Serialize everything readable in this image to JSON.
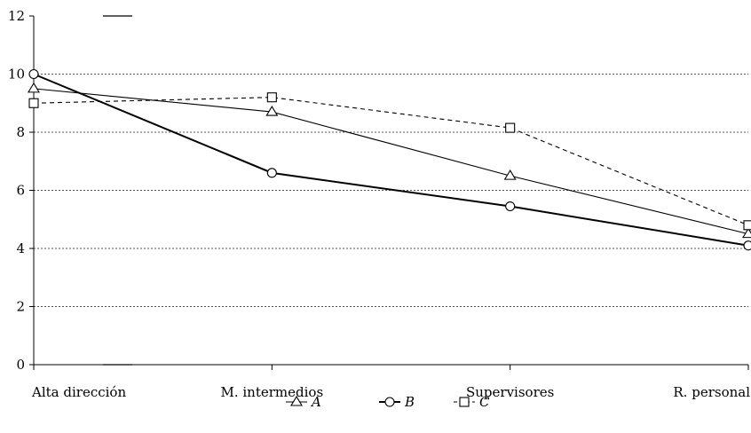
{
  "chart_data": {
    "type": "line",
    "title": "",
    "xlabel": "",
    "ylabel": "",
    "categories": [
      "Alta dirección",
      "M. intermedios",
      "Supervisores",
      "R. personal"
    ],
    "ylim": [
      0,
      12
    ],
    "yticks": [
      0,
      2,
      4,
      6,
      8,
      10,
      12
    ],
    "grid": "horizontal-dotted",
    "legend_position": "bottom",
    "series": [
      {
        "name": "A",
        "values": [
          9.5,
          8.7,
          6.5,
          4.5
        ],
        "marker": "triangle",
        "line": "solid-thin"
      },
      {
        "name": "B",
        "values": [
          10.0,
          6.6,
          5.45,
          4.1
        ],
        "marker": "circle",
        "line": "solid-thick"
      },
      {
        "name": "C",
        "values": [
          9.0,
          9.2,
          8.15,
          4.8
        ],
        "marker": "square",
        "line": "dashed"
      }
    ]
  }
}
